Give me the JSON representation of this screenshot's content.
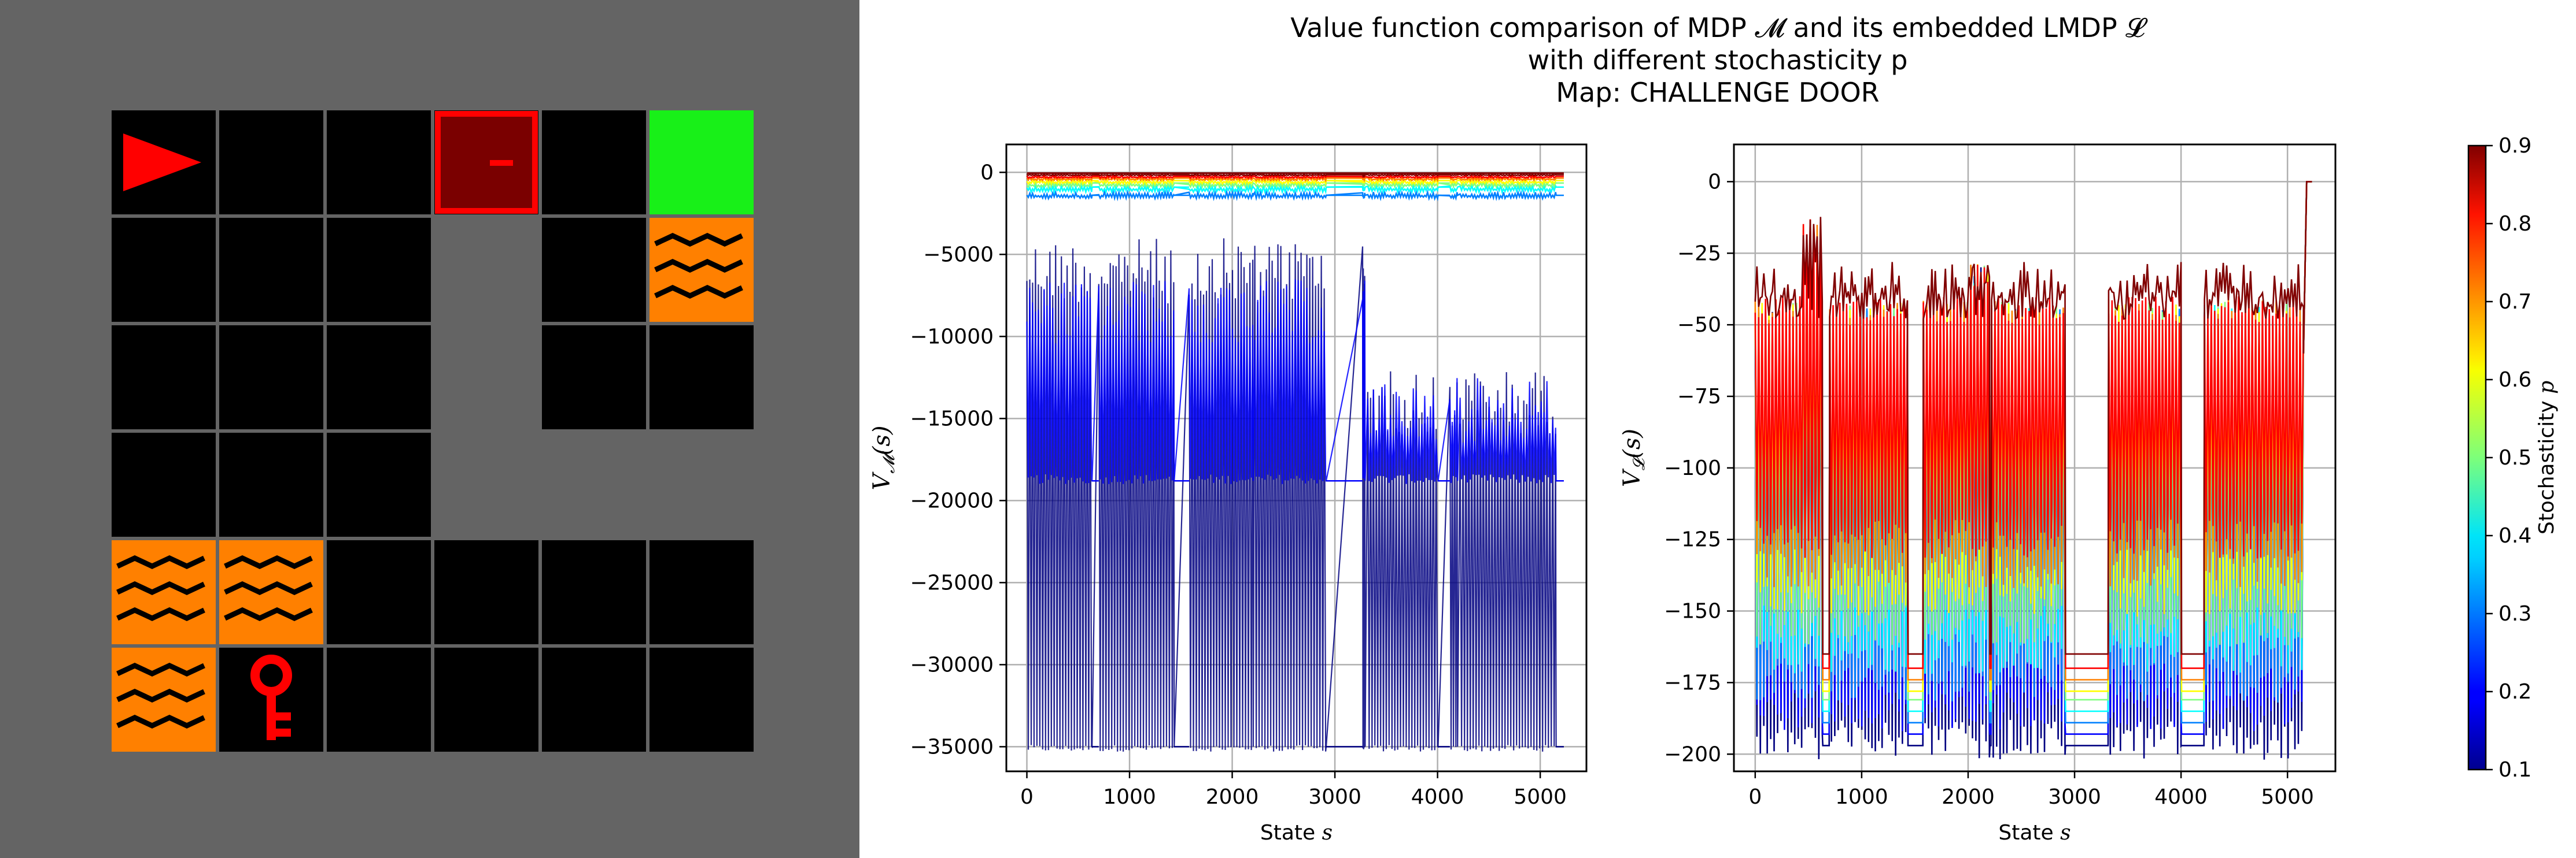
{
  "title": {
    "line1": "Value function comparison of MDP 𝓜 and its embedded LMDP 𝓛",
    "line2": "with different stochasticity p",
    "line3": "Map: CHALLENGE DOOR"
  },
  "gridworld": {
    "rows": 6,
    "cols": 6,
    "cells": [
      [
        "agent",
        "floor",
        "floor",
        "door",
        "floor",
        "goal"
      ],
      [
        "floor",
        "floor",
        "floor",
        "wall",
        "floor",
        "lava"
      ],
      [
        "floor",
        "floor",
        "floor",
        "wall",
        "floor",
        "floor"
      ],
      [
        "floor",
        "floor",
        "floor",
        "wall",
        "wall",
        "wall"
      ],
      [
        "lava",
        "lava",
        "floor",
        "floor",
        "floor",
        "floor"
      ],
      [
        "lava",
        "key",
        "floor",
        "floor",
        "floor",
        "floor"
      ]
    ],
    "colors": {
      "background": "#646464",
      "floor": "#000000",
      "grid_line": "#646464",
      "goal": "#18f018",
      "lava": "#ff8000",
      "door_fill": "#7a0000",
      "door_border": "#ff0000",
      "agent": "#ff0000",
      "key": "#ff0000"
    },
    "icons": {
      "agent": "triangle-right-icon",
      "door": "locked-door-icon",
      "key": "key-icon",
      "lava": "wave-icon",
      "goal": "goal-square"
    }
  },
  "chart_data": [
    {
      "type": "line",
      "xlabel": "State s",
      "ylabel": "V_M(s)",
      "xlim": [
        -200,
        5450
      ],
      "ylim": [
        -36500,
        1700
      ],
      "xticks": [
        0,
        1000,
        2000,
        3000,
        4000,
        5000
      ],
      "yticks": [
        0,
        -5000,
        -10000,
        -15000,
        -20000,
        -25000,
        -30000,
        -35000
      ],
      "ytick_labels": [
        "0",
        "−5000",
        "−10000",
        "−15000",
        "−20000",
        "−25000",
        "−30000",
        "−35000"
      ],
      "grid": true,
      "colormap": "jet",
      "states": 5220,
      "reach_segments": [
        [
          0,
          630
        ],
        [
          700,
          1430
        ],
        [
          1580,
          2200
        ],
        [
          2220,
          2910
        ],
        [
          3270,
          3290
        ],
        [
          3320,
          4000
        ],
        [
          4120,
          4190
        ],
        [
          4220,
          5150
        ]
      ],
      "unreachable_segments": [
        [
          630,
          700
        ],
        [
          1430,
          1580
        ],
        [
          2910,
          3270
        ],
        [
          4000,
          4120
        ],
        [
          5150,
          5230
        ]
      ],
      "series": [
        {
          "p": 0.1,
          "top_value": -4000,
          "bottom_value": -35300,
          "flat_value": -35000
        },
        {
          "p": 0.2,
          "top_value": -6500,
          "bottom_value": -19000,
          "flat_value": -18800
        },
        {
          "p": 0.3,
          "top_value": -1200,
          "bottom_value": -1600,
          "flat_value": -1400
        },
        {
          "p": 0.4,
          "top_value": -800,
          "bottom_value": -1200,
          "flat_value": -900
        },
        {
          "p": 0.5,
          "top_value": -600,
          "bottom_value": -900,
          "flat_value": -650
        },
        {
          "p": 0.6,
          "top_value": -450,
          "bottom_value": -700,
          "flat_value": -500
        },
        {
          "p": 0.7,
          "top_value": -300,
          "bottom_value": -500,
          "flat_value": -350
        },
        {
          "p": 0.8,
          "top_value": -200,
          "bottom_value": -350,
          "flat_value": -250
        },
        {
          "p": 0.9,
          "top_value": -100,
          "bottom_value": -200,
          "flat_value": -150
        }
      ]
    },
    {
      "type": "line",
      "xlabel": "State s",
      "ylabel": "V_L(s)",
      "xlim": [
        -200,
        5450
      ],
      "ylim": [
        -206,
        13
      ],
      "xticks": [
        0,
        1000,
        2000,
        3000,
        4000,
        5000
      ],
      "yticks": [
        0,
        -25,
        -50,
        -75,
        -100,
        -125,
        -150,
        -175,
        -200
      ],
      "ytick_labels": [
        "0",
        "−25",
        "−50",
        "−75",
        "−100",
        "−125",
        "−150",
        "−175",
        "−200"
      ],
      "grid": true,
      "colormap": "jet",
      "states": 5220,
      "reach_segments": [
        [
          0,
          630
        ],
        [
          700,
          1430
        ],
        [
          1580,
          2200
        ],
        [
          2220,
          2910
        ],
        [
          3320,
          4000
        ],
        [
          4220,
          5150
        ]
      ],
      "series": [
        {
          "p": 0.1,
          "top_value": -35,
          "bottom_value": -195,
          "flat_value": -197
        },
        {
          "p": 0.2,
          "top_value": -35,
          "bottom_value": -185,
          "flat_value": -193
        },
        {
          "p": 0.3,
          "top_value": -34,
          "bottom_value": -175,
          "flat_value": -189
        },
        {
          "p": 0.4,
          "top_value": -33,
          "bottom_value": -165,
          "flat_value": -185
        },
        {
          "p": 0.5,
          "top_value": -32,
          "bottom_value": -155,
          "flat_value": -181
        },
        {
          "p": 0.6,
          "top_value": -32,
          "bottom_value": -145,
          "flat_value": -178
        },
        {
          "p": 0.7,
          "top_value": -31,
          "bottom_value": -135,
          "flat_value": -174
        },
        {
          "p": 0.8,
          "top_value": -30,
          "bottom_value": -125,
          "flat_value": -170
        },
        {
          "p": 0.9,
          "top_value": -28,
          "bottom_value": -40,
          "flat_value": -165
        }
      ],
      "terminal_value": 0
    }
  ],
  "colorbar": {
    "label": "Stochasticity p",
    "min": 0.1,
    "max": 0.9,
    "ticks": [
      "0.1",
      "0.2",
      "0.3",
      "0.4",
      "0.5",
      "0.6",
      "0.7",
      "0.8",
      "0.9"
    ],
    "colormap": "jet"
  }
}
